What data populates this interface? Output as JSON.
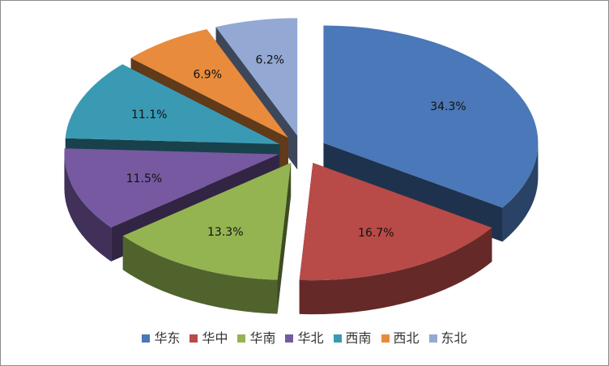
{
  "chart_data": {
    "type": "pie",
    "style": "3d-exploded",
    "categories": [
      "华东",
      "华中",
      "华南",
      "华北",
      "西南",
      "西北",
      "东北"
    ],
    "values": [
      34.3,
      16.7,
      13.3,
      11.5,
      11.1,
      6.9,
      6.2
    ],
    "data_labels": [
      "34.3%",
      "16.7%",
      "13.3%",
      "11.5%",
      "11.1%",
      "6.9%",
      "6.2%"
    ],
    "colors": [
      "#4a78b8",
      "#b84a48",
      "#94b452",
      "#7659a0",
      "#3a9ab4",
      "#e88b3c",
      "#93a9d3"
    ],
    "legend_position": "bottom"
  }
}
